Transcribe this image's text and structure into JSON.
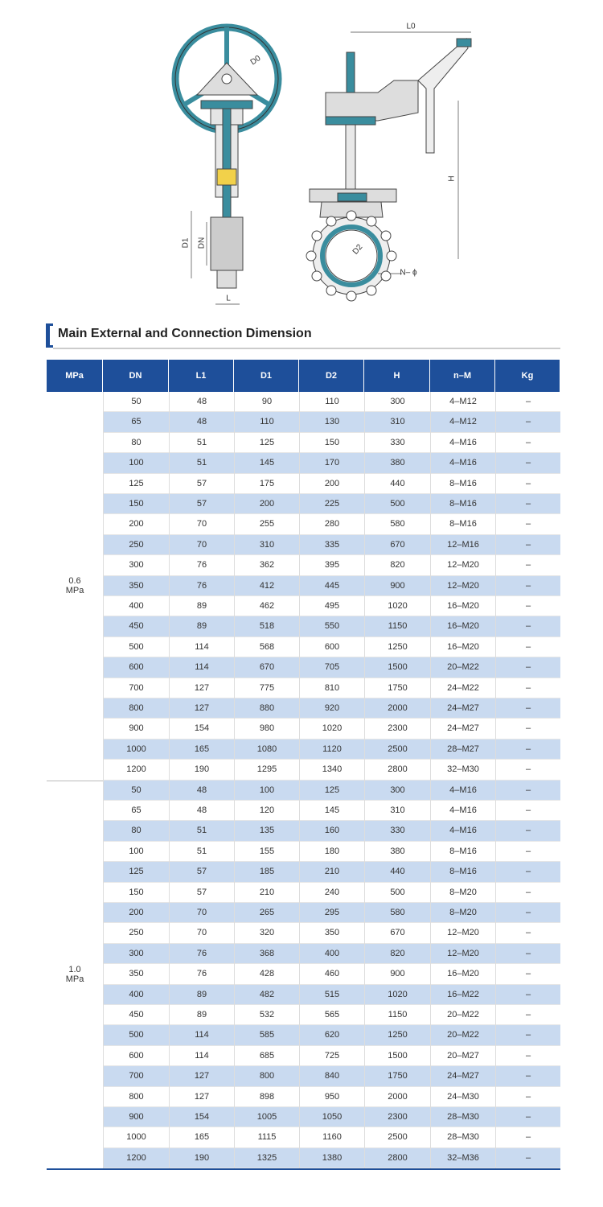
{
  "diagram": {
    "labels": {
      "d0": "D0",
      "l0": "L0",
      "h": "H",
      "d1": "D1",
      "dn": "DN",
      "l": "L",
      "d2": "D2",
      "n_phi": "N– ϕ"
    }
  },
  "section_title": "Main External and Connection Dimension",
  "table": {
    "headers": [
      "MPa",
      "DN",
      "L1",
      "D1",
      "D2",
      "H",
      "n–M",
      "Kg"
    ],
    "groups": [
      {
        "label": [
          "0.6",
          "MPa"
        ],
        "rows": [
          [
            50,
            48,
            90,
            110,
            300,
            "4–M12",
            "–"
          ],
          [
            65,
            48,
            110,
            130,
            310,
            "4–M12",
            "–"
          ],
          [
            80,
            51,
            125,
            150,
            330,
            "4–M16",
            "–"
          ],
          [
            100,
            51,
            145,
            170,
            380,
            "4–M16",
            "–"
          ],
          [
            125,
            57,
            175,
            200,
            440,
            "8–M16",
            "–"
          ],
          [
            150,
            57,
            200,
            225,
            500,
            "8–M16",
            "–"
          ],
          [
            200,
            70,
            255,
            280,
            580,
            "8–M16",
            "–"
          ],
          [
            250,
            70,
            310,
            335,
            670,
            "12–M16",
            "–"
          ],
          [
            300,
            76,
            362,
            395,
            820,
            "12–M20",
            "–"
          ],
          [
            350,
            76,
            412,
            445,
            900,
            "12–M20",
            "–"
          ],
          [
            400,
            89,
            462,
            495,
            1020,
            "16–M20",
            "–"
          ],
          [
            450,
            89,
            518,
            550,
            1150,
            "16–M20",
            "–"
          ],
          [
            500,
            114,
            568,
            600,
            1250,
            "16–M20",
            "–"
          ],
          [
            600,
            114,
            670,
            705,
            1500,
            "20–M22",
            "–"
          ],
          [
            700,
            127,
            775,
            810,
            1750,
            "24–M22",
            "–"
          ],
          [
            800,
            127,
            880,
            920,
            2000,
            "24–M27",
            "–"
          ],
          [
            900,
            154,
            980,
            1020,
            2300,
            "24–M27",
            "–"
          ],
          [
            1000,
            165,
            1080,
            1120,
            2500,
            "28–M27",
            "–"
          ],
          [
            1200,
            190,
            1295,
            1340,
            2800,
            "32–M30",
            "–"
          ]
        ]
      },
      {
        "label": [
          "1.0",
          "MPa"
        ],
        "rows": [
          [
            50,
            48,
            100,
            125,
            300,
            "4–M16",
            "–"
          ],
          [
            65,
            48,
            120,
            145,
            310,
            "4–M16",
            "–"
          ],
          [
            80,
            51,
            135,
            160,
            330,
            "4–M16",
            "–"
          ],
          [
            100,
            51,
            155,
            180,
            380,
            "8–M16",
            "–"
          ],
          [
            125,
            57,
            185,
            210,
            440,
            "8–M16",
            "–"
          ],
          [
            150,
            57,
            210,
            240,
            500,
            "8–M20",
            "–"
          ],
          [
            200,
            70,
            265,
            295,
            580,
            "8–M20",
            "–"
          ],
          [
            250,
            70,
            320,
            350,
            670,
            "12–M20",
            "–"
          ],
          [
            300,
            76,
            368,
            400,
            820,
            "12–M20",
            "–"
          ],
          [
            350,
            76,
            428,
            460,
            900,
            "16–M20",
            "–"
          ],
          [
            400,
            89,
            482,
            515,
            1020,
            "16–M22",
            "–"
          ],
          [
            450,
            89,
            532,
            565,
            1150,
            "20–M22",
            "–"
          ],
          [
            500,
            114,
            585,
            620,
            1250,
            "20–M22",
            "–"
          ],
          [
            600,
            114,
            685,
            725,
            1500,
            "20–M27",
            "–"
          ],
          [
            700,
            127,
            800,
            840,
            1750,
            "24–M27",
            "–"
          ],
          [
            800,
            127,
            898,
            950,
            2000,
            "24–M30",
            "–"
          ],
          [
            900,
            154,
            1005,
            1050,
            2300,
            "28–M30",
            "–"
          ],
          [
            1000,
            165,
            1115,
            1160,
            2500,
            "28–M30",
            "–"
          ],
          [
            1200,
            190,
            1325,
            1380,
            2800,
            "32–M36",
            "–"
          ]
        ]
      }
    ]
  }
}
